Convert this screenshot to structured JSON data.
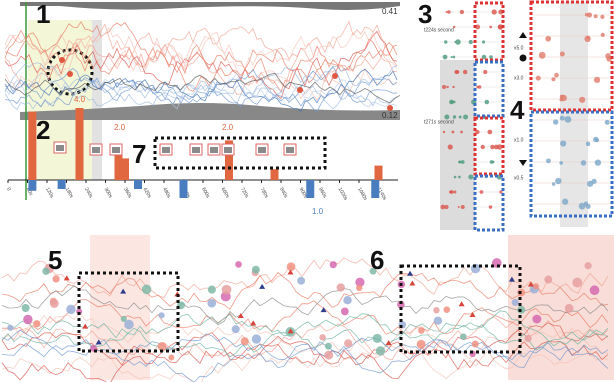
{
  "panels": {
    "p1": {
      "label": "1",
      "max_label": "0.41",
      "min_label": "0.12"
    },
    "p2": {
      "label": "2",
      "annotations": [
        "4.0",
        "2.0",
        "2.0",
        "1.0"
      ],
      "xlim": [
        0,
        1200
      ],
      "xticks": [
        0,
        {
          "value": 60,
          "label": "60s"
        },
        {
          "value": 120,
          "label": "120s"
        },
        {
          "value": 180,
          "label": "180s"
        },
        {
          "value": 240,
          "label": "240s"
        },
        {
          "value": 300,
          "label": "300s"
        },
        {
          "value": 360,
          "label": "360s"
        },
        {
          "value": 420,
          "label": "420s"
        },
        {
          "value": 480,
          "label": "480s"
        },
        {
          "value": 540,
          "label": "540s"
        },
        {
          "value": 600,
          "label": "600s"
        },
        {
          "value": 660,
          "label": "660s"
        },
        {
          "value": 720,
          "label": "720s"
        },
        {
          "value": 780,
          "label": "780s"
        },
        {
          "value": 840,
          "label": "840s"
        },
        {
          "value": 900,
          "label": "900s"
        },
        {
          "value": 960,
          "label": "960s"
        },
        {
          "value": 1020,
          "label": "1020s"
        },
        {
          "value": 1080,
          "label": "1080s"
        },
        {
          "value": 1140,
          "label": "1140s"
        }
      ],
      "series": [
        {
          "color": "#e0673f",
          "x": [
            75,
            220,
            340,
            360,
            680,
            820,
            1140
          ],
          "values": [
            3.8,
            4.0,
            2.0,
            1.2,
            2.2,
            0.6,
            0.8
          ]
        },
        {
          "color": "#4a7dbf",
          "x": [
            75,
            165,
            400,
            540,
            930,
            1130
          ],
          "values": [
            -0.6,
            -0.5,
            -0.5,
            -1.0,
            -1.0,
            -1.0
          ]
        }
      ]
    },
    "p3": {
      "label": "3",
      "rows": [
        "t224s second",
        "t271s second"
      ]
    },
    "p4": {
      "label": "4",
      "ticks": [
        "x5.0",
        "x3.0",
        "x1.0",
        "x0.5"
      ]
    },
    "p5": {
      "label": "5"
    },
    "p6": {
      "label": "6"
    },
    "p7": {
      "label": "7"
    }
  }
}
